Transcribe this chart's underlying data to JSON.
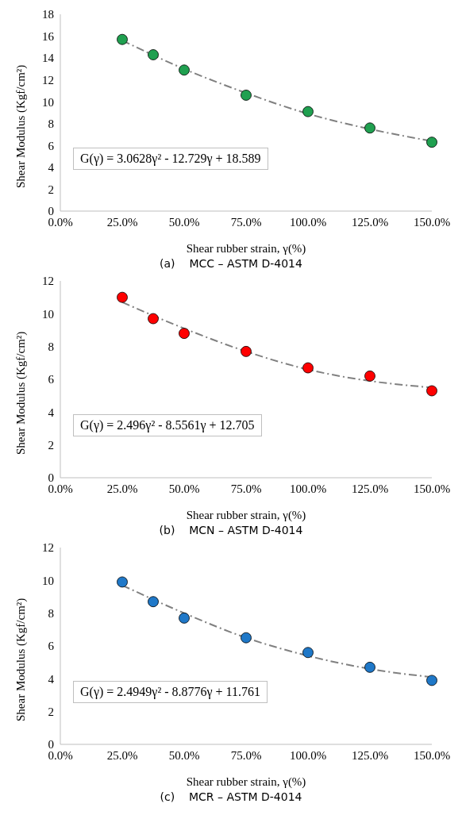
{
  "chart_data": [
    {
      "type": "scatter",
      "xlabel": "Shear rubber strain, γ(%)",
      "ylabel": "Shear Modulus (Kgf/cm²)",
      "xlim": [
        0,
        1.5
      ],
      "xticks": [
        {
          "value": 0,
          "label": "0.0%"
        },
        {
          "value": 0.25,
          "label": "25.0%"
        },
        {
          "value": 0.5,
          "label": "50.0%"
        },
        {
          "value": 0.75,
          "label": "75.0%"
        },
        {
          "value": 1,
          "label": "100.0%"
        },
        {
          "value": 1.25,
          "label": "125.0%"
        },
        {
          "value": 1.5,
          "label": "150.0%"
        }
      ],
      "ylim": [
        0,
        18
      ],
      "yticks": [
        0,
        2,
        4,
        6,
        8,
        10,
        12,
        14,
        16,
        18
      ],
      "grid": false,
      "legend": false,
      "series": [
        {
          "marker": "circle",
          "color": "#20a050",
          "x": [
            0.25,
            0.375,
            0.5,
            0.75,
            1,
            1.25,
            1.5
          ],
          "values": [
            15.7,
            14.3,
            12.9,
            10.6,
            9.1,
            7.6,
            6.3
          ]
        },
        {
          "type": "line",
          "marker": "none",
          "color": "#808080",
          "line_style": "dashed",
          "x": [
            0.25,
            0.5,
            0.75,
            1,
            1.25,
            1.5
          ],
          "values": [
            15.6,
            13.0,
            10.8,
            8.9,
            7.5,
            6.4
          ]
        }
      ],
      "annotations": [
        "G(γ) = 3.0628γ² - 12.729γ + 18.589",
        "(a)    MCC – ASTM D-4014"
      ]
    },
    {
      "type": "scatter",
      "xlabel": "Shear rubber strain, γ(%)",
      "ylabel": "Shear Modulus (Kgf/cm²)",
      "xlim": [
        0,
        1.5
      ],
      "xticks": [
        {
          "value": 0,
          "label": "0.0%"
        },
        {
          "value": 0.25,
          "label": "25.0%"
        },
        {
          "value": 0.5,
          "label": "50.0%"
        },
        {
          "value": 0.75,
          "label": "75.0%"
        },
        {
          "value": 1,
          "label": "100.0%"
        },
        {
          "value": 1.25,
          "label": "125.0%"
        },
        {
          "value": 1.5,
          "label": "150.0%"
        }
      ],
      "ylim": [
        0,
        12
      ],
      "yticks": [
        0,
        2,
        4,
        6,
        8,
        10,
        12
      ],
      "grid": false,
      "legend": false,
      "series": [
        {
          "marker": "circle",
          "color": "#ff0000",
          "x": [
            0.25,
            0.375,
            0.5,
            0.75,
            1,
            1.25,
            1.5
          ],
          "values": [
            11.0,
            9.7,
            8.8,
            7.7,
            6.7,
            6.2,
            5.3
          ]
        },
        {
          "type": "line",
          "marker": "none",
          "color": "#808080",
          "line_style": "dashed",
          "x": [
            0.25,
            0.5,
            0.75,
            1,
            1.25,
            1.5
          ],
          "values": [
            10.7,
            9.1,
            7.7,
            6.6,
            5.9,
            5.5
          ]
        }
      ],
      "annotations": [
        "G(γ) = 2.496γ² - 8.5561γ + 12.705",
        "(b)    MCN – ASTM D-4014"
      ]
    },
    {
      "type": "scatter",
      "xlabel": "Shear rubber strain, γ(%)",
      "ylabel": "Shear Modulus (Kgf/cm²)",
      "xlim": [
        0,
        1.5
      ],
      "xticks": [
        {
          "value": 0,
          "label": "0.0%"
        },
        {
          "value": 0.25,
          "label": "25.0%"
        },
        {
          "value": 0.5,
          "label": "50.0%"
        },
        {
          "value": 0.75,
          "label": "75.0%"
        },
        {
          "value": 1,
          "label": "100.0%"
        },
        {
          "value": 1.25,
          "label": "125.0%"
        },
        {
          "value": 1.5,
          "label": "150.0%"
        }
      ],
      "ylim": [
        0,
        12
      ],
      "yticks": [
        0,
        2,
        4,
        6,
        8,
        10,
        12
      ],
      "grid": false,
      "legend": false,
      "series": [
        {
          "marker": "circle",
          "color": "#1f78c8",
          "x": [
            0.25,
            0.375,
            0.5,
            0.75,
            1,
            1.25,
            1.5
          ],
          "values": [
            9.9,
            8.7,
            7.7,
            6.5,
            5.6,
            4.7,
            3.9
          ]
        },
        {
          "type": "line",
          "marker": "none",
          "color": "#808080",
          "line_style": "dashed",
          "x": [
            0.25,
            0.5,
            0.75,
            1,
            1.25,
            1.5
          ],
          "values": [
            9.7,
            8.0,
            6.5,
            5.4,
            4.6,
            4.1
          ]
        }
      ],
      "annotations": [
        "G(γ) = 2.4949γ² - 8.8776γ + 11.761",
        "(c)    MCR – ASTM D-4014"
      ]
    }
  ]
}
